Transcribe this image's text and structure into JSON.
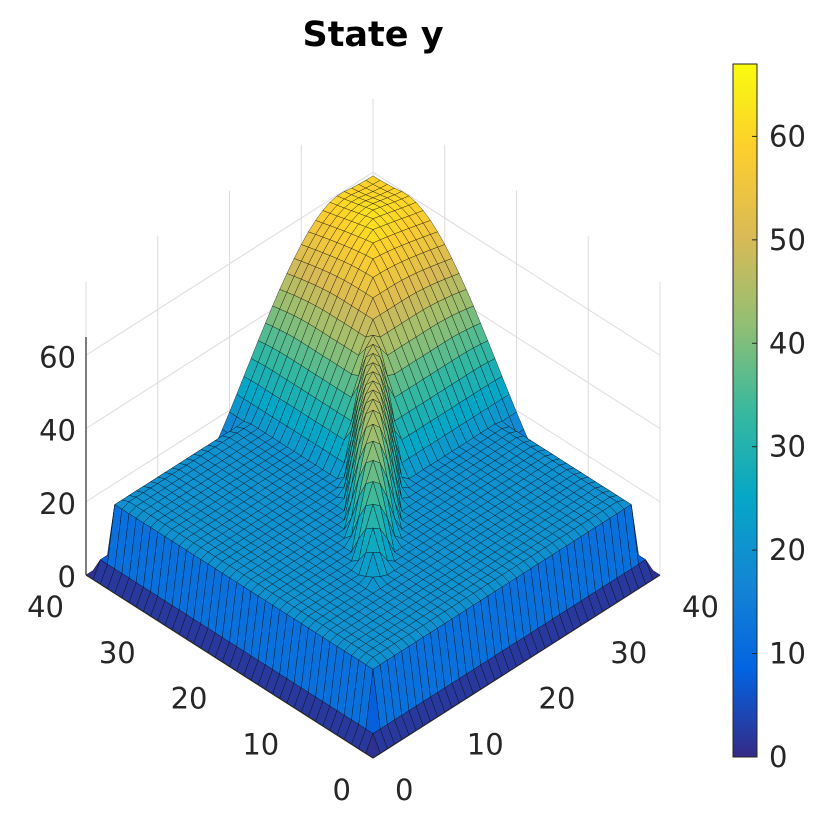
{
  "chart_data": {
    "type": "surface",
    "title": "State y",
    "xlabel": "",
    "ylabel": "",
    "zlabel": "",
    "x_range": [
      0,
      40
    ],
    "y_range": [
      0,
      40
    ],
    "z_range": [
      0,
      65
    ],
    "grid_size": [
      40,
      40
    ],
    "x_ticks": [
      "0",
      "10",
      "20",
      "30",
      "40"
    ],
    "y_ticks": [
      "0",
      "10",
      "20",
      "30",
      "40"
    ],
    "z_ticks": [
      "0",
      "20",
      "40",
      "60"
    ],
    "colorbar": {
      "range": [
        0,
        67
      ],
      "ticks": [
        "0",
        "10",
        "20",
        "30",
        "40",
        "50",
        "60"
      ],
      "colormap": "parula"
    },
    "surface_description": {
      "plateau_value": 66,
      "valley_value": 0,
      "edge_value": 20,
      "trend": "high plateau near x=40,y=40 falling toward corner x=0,y=0; narrow high ridge along center diagonal"
    },
    "colors": {
      "parula": [
        "#352A87",
        "#0363E1",
        "#1485D4",
        "#06A7C6",
        "#38B99E",
        "#92BF73",
        "#D9BA56",
        "#FCCE2E",
        "#F9FB0E"
      ],
      "edge": "#000000",
      "axis": "#262626",
      "grid": "#dcdcdc"
    }
  }
}
